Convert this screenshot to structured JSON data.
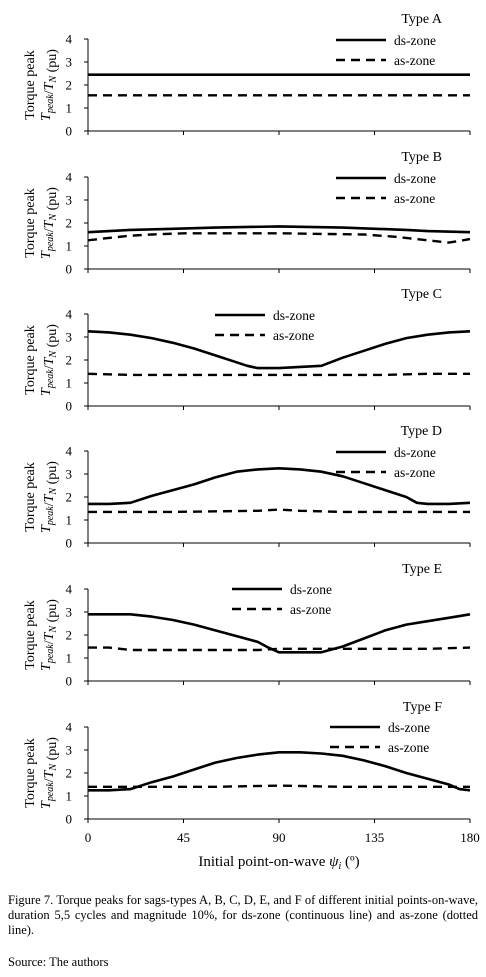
{
  "figure": {
    "xlabel_text": "Initial point-on-wave",
    "xlabel_symbol": "ψ",
    "xlabel_sub": "i",
    "xlabel_unit": "(º)",
    "ylabel_line1": "Torque peak",
    "ylabel_T": "T",
    "ylabel_peak": "peak",
    "ylabel_TN": "T",
    "ylabel_N": "N",
    "ylabel_unit": "(pu)"
  },
  "caption": {
    "text": "Figure 7. Torque peaks for sags-types A, B, C, D, E, and F of different initial points-on-wave, duration 5,5 cycles and magnitude 10%, for ds-zone (continuous line) and as-zone (dotted line).",
    "source": "Source: The authors"
  },
  "chart_data": [
    {
      "type": "line",
      "title": "Type A",
      "xlim": [
        0,
        180
      ],
      "ylim": [
        0,
        4
      ],
      "xticks": [
        0,
        45,
        90,
        135,
        180
      ],
      "yticks": [
        0,
        1,
        2,
        3,
        4
      ],
      "legend_position": "top-right",
      "series": [
        {
          "name": "ds-zone",
          "style": "solid",
          "x": [
            0,
            180
          ],
          "y": [
            2.45,
            2.45
          ]
        },
        {
          "name": "as-zone",
          "style": "dashed",
          "x": [
            0,
            180
          ],
          "y": [
            1.55,
            1.55
          ]
        }
      ]
    },
    {
      "type": "line",
      "title": "Type B",
      "xlim": [
        0,
        180
      ],
      "ylim": [
        0,
        4
      ],
      "xticks": [
        0,
        45,
        90,
        135,
        180
      ],
      "yticks": [
        0,
        1,
        2,
        3,
        4
      ],
      "legend_position": "top-right",
      "series": [
        {
          "name": "ds-zone",
          "style": "solid",
          "x": [
            0,
            10,
            20,
            40,
            60,
            90,
            120,
            150,
            160,
            180
          ],
          "y": [
            1.6,
            1.65,
            1.7,
            1.75,
            1.8,
            1.85,
            1.8,
            1.7,
            1.65,
            1.6
          ]
        },
        {
          "name": "as-zone",
          "style": "dashed",
          "x": [
            0,
            10,
            20,
            30,
            45,
            90,
            130,
            145,
            160,
            170,
            180
          ],
          "y": [
            1.25,
            1.35,
            1.45,
            1.5,
            1.55,
            1.55,
            1.5,
            1.4,
            1.25,
            1.15,
            1.3
          ]
        }
      ]
    },
    {
      "type": "line",
      "title": "Type C",
      "xlim": [
        0,
        180
      ],
      "ylim": [
        0,
        4
      ],
      "xticks": [
        0,
        45,
        90,
        135,
        180
      ],
      "yticks": [
        0,
        1,
        2,
        3,
        4
      ],
      "legend_position": "top-center",
      "series": [
        {
          "name": "ds-zone",
          "style": "solid",
          "x": [
            0,
            10,
            20,
            30,
            40,
            50,
            60,
            70,
            75,
            80,
            90,
            100,
            110,
            120,
            130,
            140,
            150,
            160,
            170,
            180
          ],
          "y": [
            3.25,
            3.2,
            3.1,
            2.95,
            2.75,
            2.5,
            2.2,
            1.9,
            1.75,
            1.65,
            1.65,
            1.7,
            1.75,
            2.1,
            2.4,
            2.7,
            2.95,
            3.1,
            3.2,
            3.25
          ]
        },
        {
          "name": "as-zone",
          "style": "dashed",
          "x": [
            0,
            20,
            40,
            90,
            140,
            160,
            180
          ],
          "y": [
            1.4,
            1.35,
            1.35,
            1.35,
            1.35,
            1.4,
            1.4
          ]
        }
      ]
    },
    {
      "type": "line",
      "title": "Type D",
      "xlim": [
        0,
        180
      ],
      "ylim": [
        0,
        4
      ],
      "xticks": [
        0,
        45,
        90,
        135,
        180
      ],
      "yticks": [
        0,
        1,
        2,
        3,
        4
      ],
      "legend_position": "top-right",
      "series": [
        {
          "name": "ds-zone",
          "style": "solid",
          "x": [
            0,
            10,
            20,
            30,
            40,
            50,
            60,
            70,
            80,
            90,
            100,
            110,
            120,
            130,
            140,
            150,
            155,
            160,
            170,
            180
          ],
          "y": [
            1.7,
            1.7,
            1.75,
            2.05,
            2.3,
            2.55,
            2.85,
            3.1,
            3.2,
            3.25,
            3.2,
            3.1,
            2.9,
            2.6,
            2.3,
            2.0,
            1.75,
            1.7,
            1.7,
            1.75
          ]
        },
        {
          "name": "as-zone",
          "style": "dashed",
          "x": [
            0,
            40,
            80,
            90,
            100,
            120,
            180
          ],
          "y": [
            1.35,
            1.35,
            1.4,
            1.45,
            1.4,
            1.35,
            1.35
          ]
        }
      ]
    },
    {
      "type": "line",
      "title": "Type E",
      "xlim": [
        0,
        180
      ],
      "ylim": [
        0,
        4
      ],
      "xticks": [
        0,
        45,
        90,
        135,
        180
      ],
      "yticks": [
        0,
        1,
        2,
        3,
        4
      ],
      "legend_position": "top-center",
      "series": [
        {
          "name": "ds-zone",
          "style": "solid",
          "x": [
            0,
            10,
            20,
            30,
            40,
            50,
            60,
            70,
            80,
            85,
            90,
            100,
            110,
            120,
            130,
            140,
            150,
            160,
            170,
            180
          ],
          "y": [
            2.9,
            2.9,
            2.9,
            2.8,
            2.65,
            2.45,
            2.2,
            1.95,
            1.7,
            1.45,
            1.25,
            1.25,
            1.25,
            1.5,
            1.85,
            2.2,
            2.45,
            2.6,
            2.75,
            2.9
          ]
        },
        {
          "name": "as-zone",
          "style": "dashed",
          "x": [
            0,
            10,
            20,
            50,
            80,
            90,
            100,
            130,
            160,
            180
          ],
          "y": [
            1.45,
            1.45,
            1.35,
            1.35,
            1.35,
            1.4,
            1.4,
            1.4,
            1.4,
            1.45
          ]
        }
      ]
    },
    {
      "type": "line",
      "title": "Type F",
      "xlim": [
        0,
        180
      ],
      "ylim": [
        0,
        4
      ],
      "xticks": [
        0,
        45,
        90,
        135,
        180
      ],
      "yticks": [
        0,
        1,
        2,
        3,
        4
      ],
      "legend_position": "top-right",
      "series": [
        {
          "name": "ds-zone",
          "style": "solid",
          "x": [
            0,
            10,
            20,
            30,
            40,
            50,
            60,
            70,
            80,
            90,
            100,
            110,
            120,
            130,
            140,
            150,
            160,
            170,
            175,
            180
          ],
          "y": [
            1.25,
            1.25,
            1.3,
            1.6,
            1.85,
            2.15,
            2.45,
            2.65,
            2.8,
            2.9,
            2.9,
            2.85,
            2.75,
            2.55,
            2.3,
            2.0,
            1.75,
            1.5,
            1.3,
            1.25
          ]
        },
        {
          "name": "as-zone",
          "style": "dashed",
          "x": [
            0,
            20,
            60,
            90,
            120,
            170,
            180
          ],
          "y": [
            1.4,
            1.4,
            1.4,
            1.45,
            1.4,
            1.4,
            1.4
          ]
        }
      ]
    }
  ]
}
